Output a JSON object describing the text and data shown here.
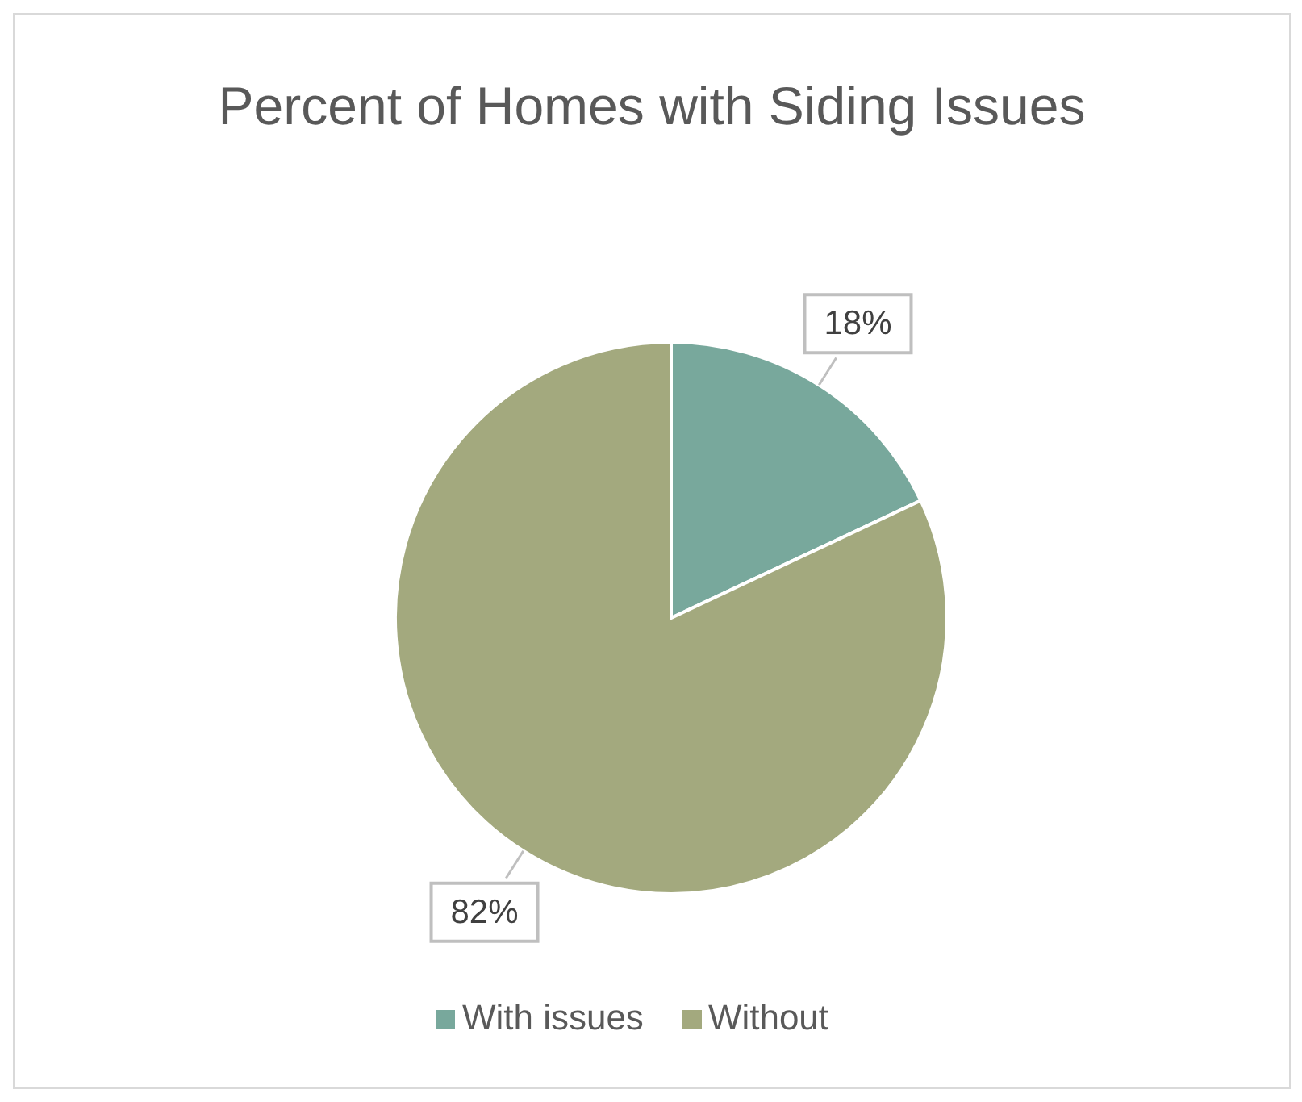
{
  "chart_data": {
    "type": "pie",
    "title": "Percent of Homes with Siding Issues",
    "categories": [
      "With issues",
      "Without"
    ],
    "values": [
      18,
      82
    ],
    "colors": [
      "#78a89c",
      "#a3a97e"
    ],
    "value_labels": [
      "18%",
      "82%"
    ],
    "legend": "bottom"
  }
}
